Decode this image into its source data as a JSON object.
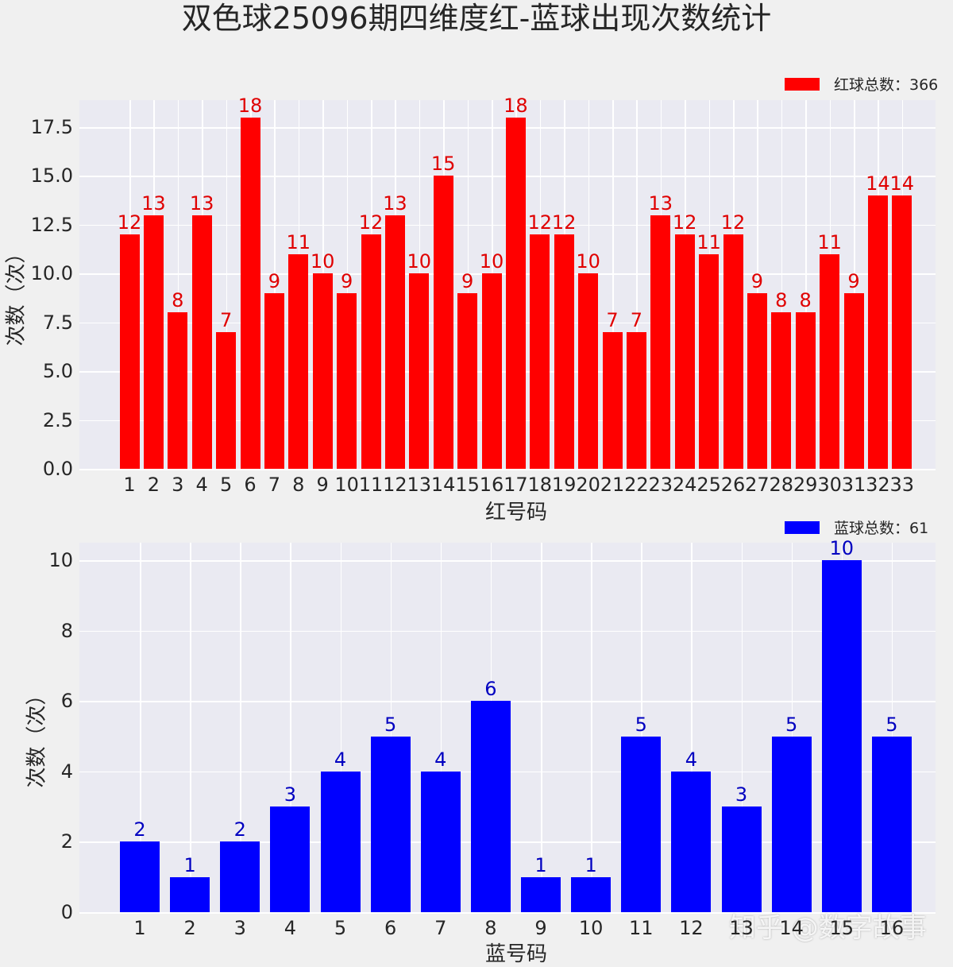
{
  "title": "双色球25096期四维度红-蓝球出现次数统计",
  "colors": {
    "red": "#ff0000",
    "red_label": "#e00000",
    "blue": "#0000ff",
    "blue_label": "#0000c0",
    "axes_bg": "#eaeaf2",
    "page_bg": "#f0f0f0"
  },
  "watermark": "知乎 @数字故事",
  "chart_data": [
    {
      "type": "bar",
      "title": "",
      "legend": "红球总数：366",
      "legend_position": "upper right",
      "xlabel": "红号码",
      "ylabel": "次数（次）",
      "grid": true,
      "ylim": [
        0,
        18.9
      ],
      "yticks": [
        "0.0",
        "2.5",
        "5.0",
        "7.5",
        "10.0",
        "12.5",
        "15.0",
        "17.5"
      ],
      "categories": [
        "1",
        "2",
        "3",
        "4",
        "5",
        "6",
        "7",
        "8",
        "9",
        "10",
        "11",
        "12",
        "13",
        "14",
        "15",
        "16",
        "17",
        "18",
        "19",
        "20",
        "21",
        "22",
        "23",
        "24",
        "25",
        "26",
        "27",
        "28",
        "29",
        "30",
        "31",
        "32",
        "33"
      ],
      "values": [
        12,
        13,
        8,
        13,
        7,
        18,
        9,
        11,
        10,
        9,
        12,
        13,
        10,
        15,
        9,
        10,
        18,
        12,
        12,
        10,
        7,
        7,
        13,
        12,
        11,
        12,
        9,
        8,
        8,
        11,
        9,
        14,
        14
      ],
      "color": "#ff0000"
    },
    {
      "type": "bar",
      "title": "",
      "legend": "蓝球总数：61",
      "legend_position": "upper right",
      "xlabel": "蓝号码",
      "ylabel": "次数（次）",
      "grid": true,
      "ylim": [
        0,
        10.5
      ],
      "yticks": [
        "0",
        "2",
        "4",
        "6",
        "8",
        "10"
      ],
      "categories": [
        "1",
        "2",
        "3",
        "4",
        "5",
        "6",
        "7",
        "8",
        "9",
        "10",
        "11",
        "12",
        "13",
        "14",
        "15",
        "16"
      ],
      "values": [
        2,
        1,
        2,
        3,
        4,
        5,
        4,
        6,
        1,
        1,
        5,
        4,
        3,
        5,
        10,
        5
      ],
      "color": "#0000ff"
    }
  ]
}
